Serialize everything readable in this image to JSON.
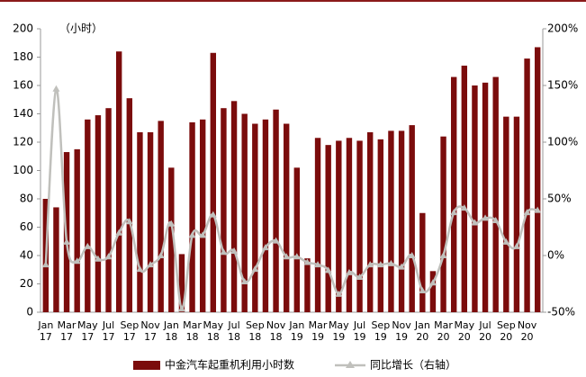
{
  "chart_data": {
    "type": "bar-line",
    "unit_label": "（小时）",
    "categories": [
      "Jan 17",
      null,
      "Mar 17",
      null,
      "May 17",
      null,
      "Jul 17",
      null,
      "Sep 17",
      null,
      "Nov 17",
      null,
      "Jan 18",
      null,
      "Mar 18",
      null,
      "May 18",
      null,
      "Jul 18",
      null,
      "Sep 18",
      null,
      "Nov 18",
      null,
      "Jan 19",
      null,
      "Mar 19",
      null,
      "May 19",
      null,
      "Jul 19",
      null,
      "Sep 19",
      null,
      "Nov 19",
      null,
      "Jan 20",
      null,
      "Mar 20",
      null,
      "May 20",
      null,
      "Jul 20",
      null,
      "Sep 20",
      null,
      "Nov 20",
      null
    ],
    "series": [
      {
        "name": "中金汽车起重机利用小时数",
        "color": "#7b0c0c",
        "values": [
          80,
          74,
          113,
          115,
          136,
          139,
          144,
          184,
          151,
          127,
          127,
          135,
          102,
          41,
          134,
          136,
          183,
          144,
          149,
          140,
          133,
          136,
          143,
          133,
          102,
          38,
          123,
          118,
          121,
          123,
          121,
          127,
          122,
          128,
          128,
          132,
          70,
          29,
          124,
          166,
          174,
          160,
          162,
          166,
          138,
          138,
          179,
          187
        ]
      },
      {
        "name": "同比增长（右轴）",
        "color": "#c0c0bc",
        "axis": "y2",
        "values": [
          -8,
          147,
          12,
          -5,
          8,
          -3,
          -1,
          20,
          30,
          -12,
          -8,
          0,
          28,
          -47,
          18,
          18,
          36,
          3,
          4,
          -23,
          -12,
          7,
          13,
          -1,
          -1,
          -6,
          -8,
          -13,
          -34,
          -15,
          -19,
          -8,
          -8,
          -7,
          -10,
          0,
          -31,
          -24,
          0,
          38,
          42,
          29,
          33,
          31,
          12,
          8,
          38,
          40
        ]
      }
    ],
    "ylim": [
      0,
      200
    ],
    "yticks": [
      0,
      20,
      40,
      60,
      80,
      100,
      120,
      140,
      160,
      180,
      200
    ],
    "y2lim": [
      -50,
      200
    ],
    "y2ticks": [
      {
        "value": -50,
        "label": "-50%"
      },
      {
        "value": 0,
        "label": "0%"
      },
      {
        "value": 50,
        "label": "50%"
      },
      {
        "value": 100,
        "label": "100%"
      },
      {
        "value": 150,
        "label": "150%"
      },
      {
        "value": 200,
        "label": "200%"
      }
    ],
    "grid": false
  }
}
